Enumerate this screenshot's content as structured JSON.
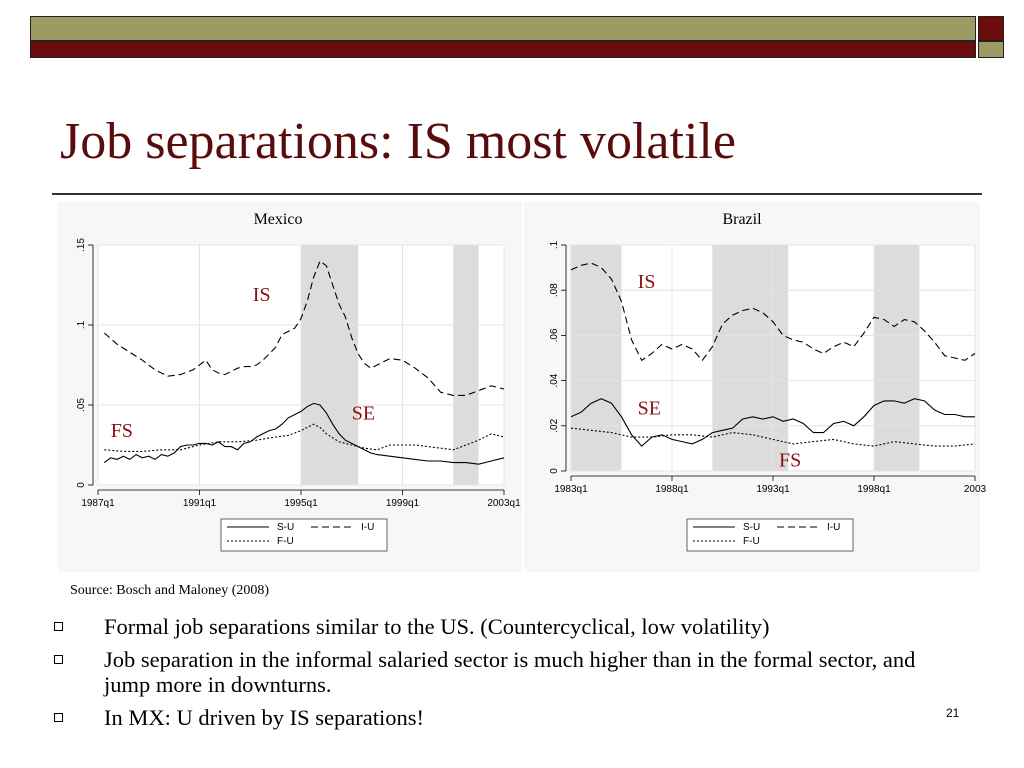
{
  "slide": {
    "title": "Job separations: IS most volatile",
    "source": "Source: Bosch and Maloney (2008)",
    "bullets": [
      "Formal job separations similar to the US. (Countercyclical, low volatility)",
      "Job separation in the informal salaried sector is much higher than in the formal sector, and jump more in downturns.",
      "In MX: U driven by IS separations!"
    ],
    "page_number": "21",
    "colors": {
      "title": "#5a0c0c",
      "bar_dark": "#6b0d0d",
      "bar_olive": "#9b9b63",
      "shade": "#dcdcdc"
    }
  },
  "chart_data": [
    {
      "type": "line",
      "title": "Mexico",
      "xlim": [
        1987.0,
        2003.0
      ],
      "ylim": [
        0,
        0.15
      ],
      "xticks": [
        "1987q1",
        "1991q1",
        "1995q1",
        "1999q1",
        "2003q1"
      ],
      "yticks": [
        "0",
        ".05",
        ".1",
        ".15"
      ],
      "recessions": [
        [
          1995.0,
          1997.25
        ],
        [
          2001.0,
          2002.0
        ]
      ],
      "annotations": [
        {
          "text": "IS",
          "x": 1993.1,
          "y": 0.115
        },
        {
          "text": "SE",
          "x": 1997.0,
          "y": 0.041
        },
        {
          "text": "FS",
          "x": 1987.5,
          "y": 0.03
        }
      ],
      "legend": [
        "S-U",
        "I-U",
        "F-U"
      ],
      "grid": true,
      "series": [
        {
          "name": "I-U",
          "style": "dashed",
          "x": [
            1987.25,
            1987.75,
            1988.25,
            1988.75,
            1989.25,
            1989.75,
            1990.25,
            1990.75,
            1991.25,
            1991.5,
            1991.75,
            1992.0,
            1992.25,
            1992.5,
            1992.75,
            1993.0,
            1993.25,
            1993.5,
            1993.75,
            1994.0,
            1994.25,
            1994.5,
            1994.75,
            1995.0,
            1995.25,
            1995.5,
            1995.75,
            1996.0,
            1996.25,
            1996.5,
            1996.75,
            1997.0,
            1997.25,
            1997.5,
            1997.75,
            1998.0,
            1998.5,
            1999.0,
            1999.5,
            2000.0,
            2000.5,
            2001.0,
            2001.5,
            2002.0,
            2002.5,
            2003.0
          ],
          "y": [
            0.095,
            0.088,
            0.083,
            0.078,
            0.072,
            0.068,
            0.069,
            0.072,
            0.078,
            0.072,
            0.07,
            0.069,
            0.071,
            0.073,
            0.074,
            0.074,
            0.075,
            0.078,
            0.082,
            0.086,
            0.094,
            0.096,
            0.098,
            0.104,
            0.115,
            0.13,
            0.14,
            0.137,
            0.125,
            0.113,
            0.105,
            0.092,
            0.082,
            0.076,
            0.073,
            0.075,
            0.079,
            0.078,
            0.073,
            0.067,
            0.058,
            0.056,
            0.056,
            0.059,
            0.062,
            0.06
          ]
        },
        {
          "name": "S-U",
          "style": "solid",
          "x": [
            1987.25,
            1987.5,
            1987.75,
            1988.0,
            1988.25,
            1988.5,
            1988.75,
            1989.0,
            1989.25,
            1989.5,
            1989.75,
            1990.0,
            1990.25,
            1990.5,
            1990.75,
            1991.0,
            1991.25,
            1991.5,
            1991.75,
            1992.0,
            1992.25,
            1992.5,
            1992.75,
            1993.0,
            1993.25,
            1993.5,
            1993.75,
            1994.0,
            1994.25,
            1994.5,
            1994.75,
            1995.0,
            1995.25,
            1995.5,
            1995.75,
            1996.0,
            1996.25,
            1996.5,
            1996.75,
            1997.0,
            1997.25,
            1997.5,
            1997.75,
            1998.0,
            1998.5,
            1999.0,
            1999.5,
            2000.0,
            2000.5,
            2001.0,
            2001.5,
            2002.0,
            2002.5,
            2003.0
          ],
          "y": [
            0.014,
            0.017,
            0.016,
            0.018,
            0.016,
            0.019,
            0.017,
            0.018,
            0.016,
            0.019,
            0.018,
            0.02,
            0.024,
            0.025,
            0.025,
            0.026,
            0.026,
            0.025,
            0.027,
            0.024,
            0.024,
            0.022,
            0.026,
            0.027,
            0.03,
            0.032,
            0.034,
            0.035,
            0.038,
            0.042,
            0.044,
            0.046,
            0.049,
            0.051,
            0.05,
            0.045,
            0.038,
            0.032,
            0.028,
            0.026,
            0.024,
            0.022,
            0.02,
            0.019,
            0.018,
            0.017,
            0.016,
            0.015,
            0.015,
            0.014,
            0.014,
            0.013,
            0.015,
            0.017
          ]
        },
        {
          "name": "F-U",
          "style": "dotted",
          "x": [
            1987.25,
            1988.0,
            1988.75,
            1989.5,
            1990.25,
            1991.0,
            1991.75,
            1992.5,
            1993.25,
            1994.0,
            1994.5,
            1995.0,
            1995.25,
            1995.5,
            1995.75,
            1996.0,
            1996.5,
            1997.0,
            1997.5,
            1998.0,
            1998.5,
            1999.0,
            1999.5,
            2000.0,
            2000.5,
            2001.0,
            2001.5,
            2002.0,
            2002.5,
            2003.0
          ],
          "y": [
            0.022,
            0.021,
            0.021,
            0.022,
            0.022,
            0.025,
            0.027,
            0.027,
            0.028,
            0.03,
            0.031,
            0.034,
            0.036,
            0.038,
            0.036,
            0.032,
            0.027,
            0.025,
            0.023,
            0.022,
            0.025,
            0.025,
            0.025,
            0.024,
            0.023,
            0.022,
            0.025,
            0.028,
            0.032,
            0.03
          ]
        }
      ]
    },
    {
      "type": "line",
      "title": "Brazil",
      "xlim": [
        1983.0,
        2003.0
      ],
      "ylim": [
        0,
        0.1
      ],
      "xticks": [
        "1983q1",
        "1988q1",
        "1993q1",
        "1998q1",
        "2003"
      ],
      "yticks": [
        "0",
        ".02",
        ".04",
        ".06",
        ".08",
        ".1"
      ],
      "recessions": [
        [
          1983.0,
          1985.5
        ],
        [
          1990.0,
          1993.75
        ],
        [
          1998.0,
          2000.25
        ]
      ],
      "annotations": [
        {
          "text": "IS",
          "x": 1986.3,
          "y": 0.081
        },
        {
          "text": "SE",
          "x": 1986.3,
          "y": 0.025
        },
        {
          "text": "FS",
          "x": 1993.3,
          "y": 0.002
        }
      ],
      "legend": [
        "S-U",
        "I-U",
        "F-U"
      ],
      "grid": true,
      "series": [
        {
          "name": "I-U",
          "style": "dashed",
          "x": [
            1983.0,
            1983.5,
            1984.0,
            1984.5,
            1985.0,
            1985.5,
            1986.0,
            1986.5,
            1987.0,
            1987.5,
            1988.0,
            1988.5,
            1989.0,
            1989.5,
            1990.0,
            1990.5,
            1991.0,
            1991.5,
            1992.0,
            1992.5,
            1993.0,
            1993.5,
            1994.0,
            1994.5,
            1995.0,
            1995.5,
            1996.0,
            1996.5,
            1997.0,
            1997.5,
            1998.0,
            1998.5,
            1999.0,
            1999.5,
            2000.0,
            2000.5,
            2001.0,
            2001.5,
            2002.0,
            2002.5,
            2003.0
          ],
          "y": [
            0.089,
            0.091,
            0.092,
            0.09,
            0.085,
            0.075,
            0.058,
            0.049,
            0.052,
            0.056,
            0.054,
            0.056,
            0.054,
            0.049,
            0.055,
            0.065,
            0.069,
            0.071,
            0.072,
            0.07,
            0.066,
            0.06,
            0.058,
            0.057,
            0.054,
            0.052,
            0.055,
            0.057,
            0.055,
            0.061,
            0.068,
            0.067,
            0.064,
            0.067,
            0.066,
            0.062,
            0.057,
            0.051,
            0.05,
            0.049,
            0.052
          ]
        },
        {
          "name": "S-U",
          "style": "solid",
          "x": [
            1983.0,
            1983.5,
            1984.0,
            1984.5,
            1985.0,
            1985.5,
            1986.0,
            1986.5,
            1987.0,
            1987.5,
            1988.0,
            1988.5,
            1989.0,
            1989.5,
            1990.0,
            1990.5,
            1991.0,
            1991.5,
            1992.0,
            1992.5,
            1993.0,
            1993.5,
            1994.0,
            1994.5,
            1995.0,
            1995.5,
            1996.0,
            1996.5,
            1997.0,
            1997.5,
            1998.0,
            1998.5,
            1999.0,
            1999.5,
            2000.0,
            2000.5,
            2001.0,
            2001.5,
            2002.0,
            2002.5,
            2003.0
          ],
          "y": [
            0.024,
            0.026,
            0.03,
            0.032,
            0.03,
            0.024,
            0.016,
            0.011,
            0.015,
            0.016,
            0.014,
            0.013,
            0.012,
            0.014,
            0.017,
            0.018,
            0.019,
            0.023,
            0.024,
            0.023,
            0.024,
            0.022,
            0.023,
            0.021,
            0.017,
            0.017,
            0.021,
            0.022,
            0.02,
            0.024,
            0.029,
            0.031,
            0.031,
            0.03,
            0.032,
            0.031,
            0.027,
            0.025,
            0.025,
            0.024,
            0.024
          ]
        },
        {
          "name": "F-U",
          "style": "dotted",
          "x": [
            1983.0,
            1984.0,
            1985.0,
            1986.0,
            1987.0,
            1988.0,
            1989.0,
            1990.0,
            1991.0,
            1992.0,
            1993.0,
            1994.0,
            1995.0,
            1996.0,
            1997.0,
            1998.0,
            1999.0,
            2000.0,
            2001.0,
            2002.0,
            2003.0
          ],
          "y": [
            0.019,
            0.018,
            0.017,
            0.015,
            0.015,
            0.016,
            0.016,
            0.015,
            0.017,
            0.016,
            0.014,
            0.012,
            0.013,
            0.014,
            0.012,
            0.011,
            0.013,
            0.012,
            0.011,
            0.011,
            0.012
          ]
        }
      ]
    }
  ]
}
